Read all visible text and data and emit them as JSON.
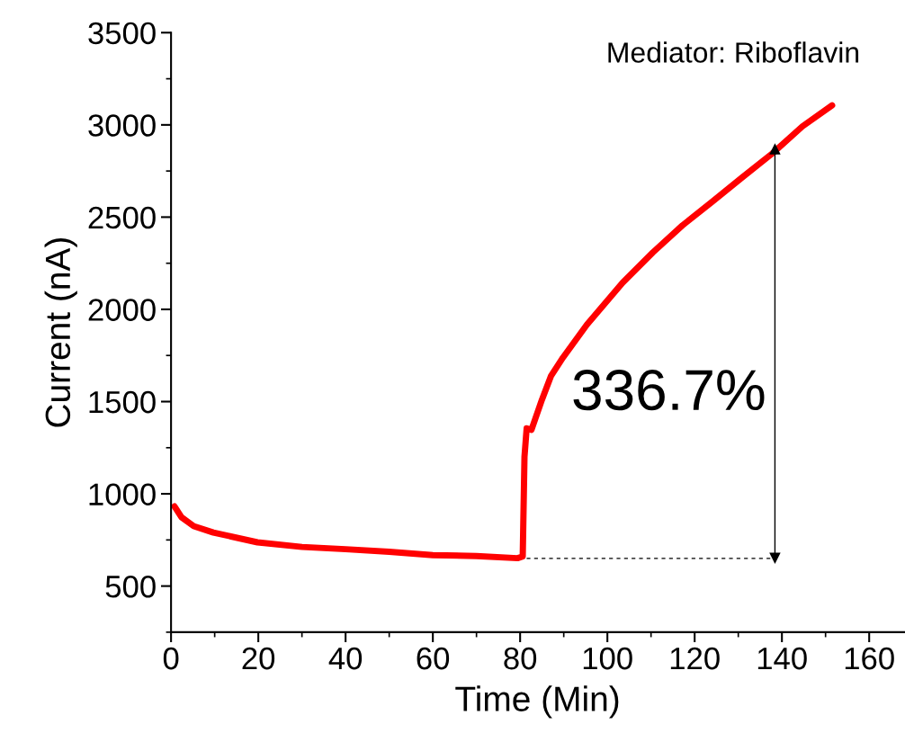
{
  "chart_data": {
    "type": "line",
    "xlabel": "Time (Min)",
    "ylabel": "Current (nA)",
    "xlim": [
      0,
      168
    ],
    "xticks": [
      0,
      20,
      40,
      60,
      80,
      100,
      120,
      140,
      160
    ],
    "ylim": [
      250,
      3500
    ],
    "yticks": [
      500,
      1000,
      1500,
      2000,
      2500,
      3000,
      3500
    ],
    "grid": false,
    "legend": false,
    "series": [
      {
        "color": "#ff0000",
        "x": [
          0.8,
          2.4,
          5.2,
          9.7,
          19.8,
          30,
          40,
          50,
          60,
          70,
          79.4,
          80.6,
          81,
          81.5,
          82.6,
          85,
          87.1,
          89.8,
          95.3,
          103.5,
          110.4,
          117.2,
          124.1,
          130.9,
          137.8,
          144.7,
          151.5
        ],
        "values": [
          932,
          873,
          825,
          790,
          737,
          712,
          700,
          686,
          668,
          663,
          651,
          660,
          1200,
          1355,
          1347,
          1510,
          1640,
          1738,
          1917,
          2145,
          2308,
          2455,
          2585,
          2715,
          2845,
          2992,
          3106
        ]
      },
      {
        "color": "#000000",
        "line_style": "dashed",
        "x": [
          81.5,
          138.4
        ],
        "values": [
          650,
          650
        ]
      },
      {
        "color": "#000000",
        "marker": "triangle",
        "x": [
          138.4,
          138.4
        ],
        "values": [
          650,
          2870
        ]
      }
    ],
    "annotations": [
      "Mediator: Riboflavin",
      {
        "text": "336.7%",
        "x": 138.4,
        "y": 1536
      }
    ]
  }
}
